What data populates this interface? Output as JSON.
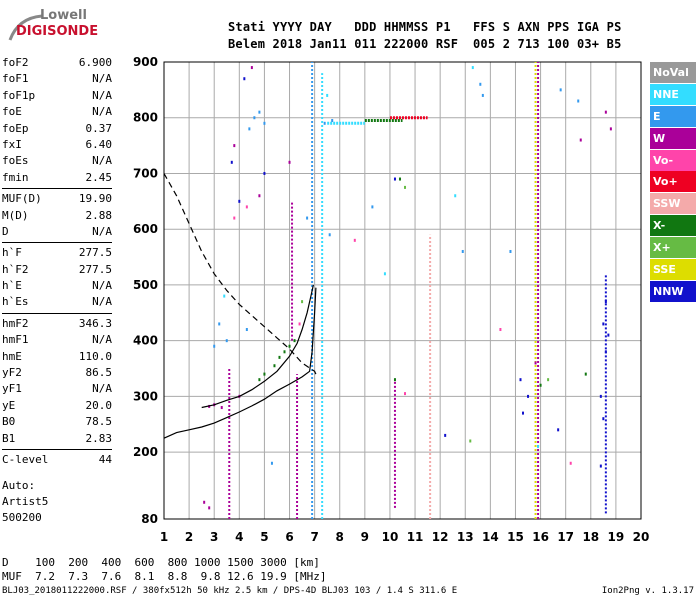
{
  "logo": {
    "line1": "Lowell",
    "line2": "DIGISONDE"
  },
  "header": {
    "line1": "Stati YYYY DAY   DDD HHMMSS P1   FFS S AXN PPS IGA PS",
    "line2": "Belem 2018 Jan11 011 222000 RSF  005 2 713 100 03+ B5"
  },
  "params": [
    [
      {
        "k": "foF2",
        "v": "6.900"
      },
      {
        "k": "foF1",
        "v": "N/A"
      },
      {
        "k": "foF1p",
        "v": "N/A"
      },
      {
        "k": "foE",
        "v": "N/A"
      },
      {
        "k": "foEp",
        "v": "0.37"
      },
      {
        "k": "fxI",
        "v": "6.40"
      },
      {
        "k": "foEs",
        "v": "N/A"
      },
      {
        "k": "fmin",
        "v": "2.45"
      }
    ],
    [
      {
        "k": "MUF(D)",
        "v": "19.90"
      },
      {
        "k": "M(D)",
        "v": "2.88"
      },
      {
        "k": "D",
        "v": "N/A"
      }
    ],
    [
      {
        "k": "h`F",
        "v": "277.5"
      },
      {
        "k": "h`F2",
        "v": "277.5"
      },
      {
        "k": "h`E",
        "v": "N/A"
      },
      {
        "k": "h`Es",
        "v": "N/A"
      }
    ],
    [
      {
        "k": "hmF2",
        "v": "346.3"
      },
      {
        "k": "hmF1",
        "v": "N/A"
      },
      {
        "k": "hmE",
        "v": "110.0"
      },
      {
        "k": "yF2",
        "v": "86.5"
      },
      {
        "k": "yF1",
        "v": "N/A"
      },
      {
        "k": "yE",
        "v": "20.0"
      },
      {
        "k": "B0",
        "v": "78.5"
      },
      {
        "k": "B1",
        "v": "2.83"
      }
    ],
    [
      {
        "k": "C-level",
        "v": "44"
      }
    ]
  ],
  "auto": {
    "l1": "Auto:",
    "l2": "Artist5",
    "l3": "500200"
  },
  "legend": [
    {
      "label": "NoVal",
      "color": "#999999"
    },
    {
      "label": "NNE",
      "color": "#33ddff"
    },
    {
      "label": "E",
      "color": "#3399ee"
    },
    {
      "label": "W",
      "color": "#aa0099"
    },
    {
      "label": "Vo-",
      "color": "#ff44aa"
    },
    {
      "label": "Vo+",
      "color": "#ee0022"
    },
    {
      "label": "SSW",
      "color": "#f4aaaa"
    },
    {
      "label": "X-",
      "color": "#117711"
    },
    {
      "label": "X+",
      "color": "#66bb44"
    },
    {
      "label": "SSE",
      "color": "#dddd00"
    },
    {
      "label": "NNW",
      "color": "#1111cc"
    }
  ],
  "mufTable": {
    "row1": "D    100  200  400  600  800 1000 1500 3000 [km]",
    "row2": "MUF  7.2  7.3  7.6  8.1  8.8  9.8 12.6 19.9 [MHz]"
  },
  "footer": "BLJ03_2018011222000.RSF / 380fx512h 50 kHz 2.5 km / DPS-4D BLJ03 103 / 1.4 S 311.6 E",
  "version": "Ion2Png v. 1.3.17",
  "chart_data": {
    "type": "scatter",
    "title": "",
    "xlabel": "",
    "ylabel": "",
    "xlim": [
      1,
      20
    ],
    "ylim": [
      80,
      900
    ],
    "xticks": [
      1,
      2,
      3,
      4,
      5,
      6,
      7,
      8,
      9,
      10,
      11,
      12,
      13,
      14,
      15,
      16,
      17,
      18,
      19,
      20
    ],
    "yticks": [
      80,
      200,
      300,
      400,
      500,
      600,
      700,
      800,
      900
    ],
    "grid": true,
    "curves": [
      {
        "name": "dashed",
        "style": "dashed",
        "color": "#000000",
        "points": [
          [
            1.0,
            700
          ],
          [
            1.5,
            660
          ],
          [
            2.0,
            610
          ],
          [
            2.5,
            560
          ],
          [
            3.0,
            520
          ],
          [
            3.5,
            490
          ],
          [
            4.0,
            465
          ],
          [
            4.5,
            445
          ],
          [
            5.0,
            425
          ],
          [
            5.5,
            405
          ],
          [
            6.0,
            385
          ],
          [
            6.5,
            360
          ],
          [
            7.0,
            345
          ],
          [
            7.1,
            335
          ]
        ]
      },
      {
        "name": "virtual",
        "style": "solid",
        "color": "#000000",
        "points": [
          [
            1.0,
            225
          ],
          [
            1.5,
            235
          ],
          [
            2.0,
            240
          ],
          [
            2.5,
            245
          ],
          [
            3.0,
            252
          ],
          [
            3.5,
            262
          ],
          [
            4.0,
            272
          ],
          [
            4.5,
            283
          ],
          [
            5.0,
            295
          ],
          [
            5.5,
            310
          ],
          [
            6.0,
            322
          ],
          [
            6.5,
            335
          ],
          [
            6.8,
            345
          ],
          [
            6.9,
            380
          ],
          [
            7.0,
            450
          ],
          [
            7.05,
            495
          ]
        ]
      },
      {
        "name": "trace",
        "style": "solid",
        "color": "#000000",
        "points": [
          [
            2.5,
            280
          ],
          [
            3.0,
            285
          ],
          [
            3.5,
            293
          ],
          [
            4.0,
            300
          ],
          [
            4.5,
            312
          ],
          [
            5.0,
            327
          ],
          [
            5.5,
            345
          ],
          [
            6.0,
            372
          ],
          [
            6.3,
            395
          ],
          [
            6.5,
            420
          ],
          [
            6.7,
            450
          ],
          [
            6.85,
            480
          ],
          [
            6.95,
            500
          ]
        ]
      }
    ],
    "verticalLines": [
      {
        "x": 6.9,
        "y1": 80,
        "y2": 900,
        "color": "#3399ee"
      },
      {
        "x": 7.3,
        "y1": 80,
        "y2": 880,
        "color": "#33ddff"
      },
      {
        "x": 6.1,
        "y1": 400,
        "y2": 650,
        "color": "#aa0099"
      },
      {
        "x": 6.3,
        "y1": 80,
        "y2": 340,
        "color": "#aa0099"
      },
      {
        "x": 15.8,
        "y1": 80,
        "y2": 900,
        "color": "#dddd00"
      },
      {
        "x": 15.9,
        "y1": 80,
        "y2": 900,
        "color": "#aa0099"
      },
      {
        "x": 11.6,
        "y1": 80,
        "y2": 590,
        "color": "#f4aaaa"
      },
      {
        "x": 18.6,
        "y1": 90,
        "y2": 520,
        "color": "#1111cc"
      },
      {
        "x": 10.2,
        "y1": 100,
        "y2": 330,
        "color": "#aa0099"
      },
      {
        "x": 3.6,
        "y1": 80,
        "y2": 350,
        "color": "#aa0099"
      }
    ],
    "segments": [
      {
        "x1": 9.0,
        "x2": 10.5,
        "y": 795,
        "color": "#117711"
      },
      {
        "x1": 10.0,
        "x2": 11.5,
        "y": 800,
        "color": "#ee0022"
      },
      {
        "x1": 7.5,
        "x2": 9.0,
        "y": 790,
        "color": "#33ddff"
      }
    ],
    "scatter": [
      {
        "color": "#3399ee",
        "points": [
          [
            4.6,
            800
          ],
          [
            4.8,
            810
          ],
          [
            5.0,
            790
          ],
          [
            4.4,
            780
          ],
          [
            3.2,
            430
          ],
          [
            3.5,
            400
          ],
          [
            3.0,
            390
          ],
          [
            4.3,
            420
          ],
          [
            7.4,
            790
          ],
          [
            7.7,
            795
          ],
          [
            13.6,
            860
          ],
          [
            13.7,
            840
          ],
          [
            16.8,
            850
          ],
          [
            17.5,
            830
          ],
          [
            6.7,
            620
          ],
          [
            5.3,
            180
          ],
          [
            7.6,
            590
          ],
          [
            9.3,
            640
          ],
          [
            12.9,
            560
          ],
          [
            14.8,
            560
          ]
        ]
      },
      {
        "color": "#1111cc",
        "points": [
          [
            4.2,
            870
          ],
          [
            18.6,
            470
          ],
          [
            18.5,
            430
          ],
          [
            18.7,
            410
          ],
          [
            18.6,
            380
          ],
          [
            18.4,
            300
          ],
          [
            18.5,
            260
          ],
          [
            15.2,
            330
          ],
          [
            15.5,
            300
          ],
          [
            15.3,
            270
          ],
          [
            3.7,
            720
          ],
          [
            4.0,
            650
          ],
          [
            5.0,
            700
          ],
          [
            12.2,
            230
          ],
          [
            10.2,
            690
          ],
          [
            16.7,
            240
          ],
          [
            18.4,
            175
          ]
        ]
      },
      {
        "color": "#117711",
        "points": [
          [
            5.4,
            355
          ],
          [
            5.6,
            370
          ],
          [
            5.8,
            380
          ],
          [
            6.0,
            390
          ],
          [
            6.2,
            400
          ],
          [
            4.8,
            330
          ],
          [
            5.0,
            340
          ],
          [
            10.2,
            330
          ],
          [
            10.4,
            690
          ],
          [
            16.0,
            320
          ],
          [
            17.8,
            340
          ]
        ]
      },
      {
        "color": "#aa0099",
        "points": [
          [
            4.5,
            890
          ],
          [
            3.8,
            750
          ],
          [
            3.3,
            280
          ],
          [
            3.0,
            285
          ],
          [
            2.8,
            282
          ],
          [
            4.0,
            300
          ],
          [
            4.8,
            660
          ],
          [
            6.0,
            720
          ],
          [
            17.6,
            760
          ],
          [
            18.6,
            810
          ],
          [
            18.8,
            780
          ],
          [
            15.8,
            360
          ],
          [
            2.6,
            110
          ],
          [
            2.8,
            100
          ]
        ]
      },
      {
        "color": "#ff44aa",
        "points": [
          [
            3.8,
            620
          ],
          [
            4.3,
            640
          ],
          [
            6.4,
            430
          ],
          [
            8.6,
            580
          ],
          [
            10.6,
            305
          ],
          [
            14.4,
            420
          ],
          [
            17.2,
            180
          ]
        ]
      },
      {
        "color": "#66bb44",
        "points": [
          [
            10.6,
            675
          ],
          [
            16.3,
            330
          ],
          [
            6.5,
            470
          ],
          [
            13.2,
            220
          ]
        ]
      },
      {
        "color": "#33ddff",
        "points": [
          [
            7.5,
            840
          ],
          [
            3.4,
            480
          ],
          [
            13.3,
            890
          ],
          [
            15.9,
            210
          ],
          [
            9.8,
            520
          ],
          [
            12.6,
            660
          ]
        ]
      }
    ]
  }
}
